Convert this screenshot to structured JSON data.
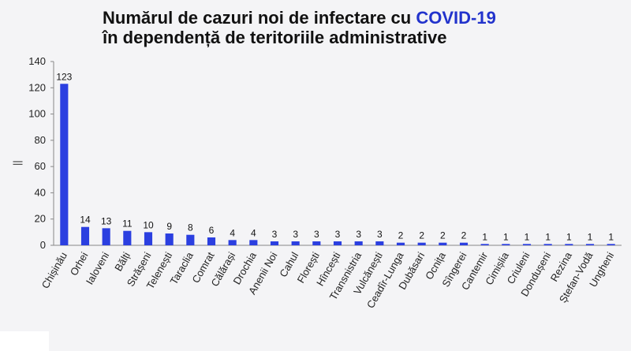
{
  "header": {
    "title_line1_prefix": "Numărul de cazuri noi de infectare cu ",
    "title_line1_highlight": "COVID-19",
    "title_line2": "în dependență de teritoriile administrative",
    "highlight_color": "#2233cc"
  },
  "chart_data": {
    "type": "bar",
    "title": "Numărul de cazuri noi de infectare cu COVID-19 în dependență de teritoriile administrative",
    "ylabel": "||",
    "xlabel": "",
    "ylim": [
      0,
      140
    ],
    "yticks": [
      0,
      20,
      40,
      60,
      80,
      100,
      120,
      140
    ],
    "grid": false,
    "bar_color": "#2b3fe0",
    "categories": [
      "Chișinău",
      "Orhei",
      "Ialoveni",
      "Bălți",
      "Strășeni",
      "Telenești",
      "Taraclia",
      "Comrat",
      "Călărași",
      "Drochia",
      "Anenii Noi",
      "Cahul",
      "Florești",
      "Hîncești",
      "Transnistria",
      "Vulcănești",
      "Ceadîr-Lunga",
      "Dubăsari",
      "Ocnița",
      "Sîngerei",
      "Cantemir",
      "Cimișlia",
      "Criuleni",
      "Dondușeni",
      "Rezina",
      "Ștefan-Vodă",
      "Ungheni"
    ],
    "values": [
      123,
      14,
      13,
      11,
      10,
      9,
      8,
      6,
      4,
      4,
      3,
      3,
      3,
      3,
      3,
      3,
      2,
      2,
      2,
      2,
      1,
      1,
      1,
      1,
      1,
      1,
      1
    ]
  }
}
